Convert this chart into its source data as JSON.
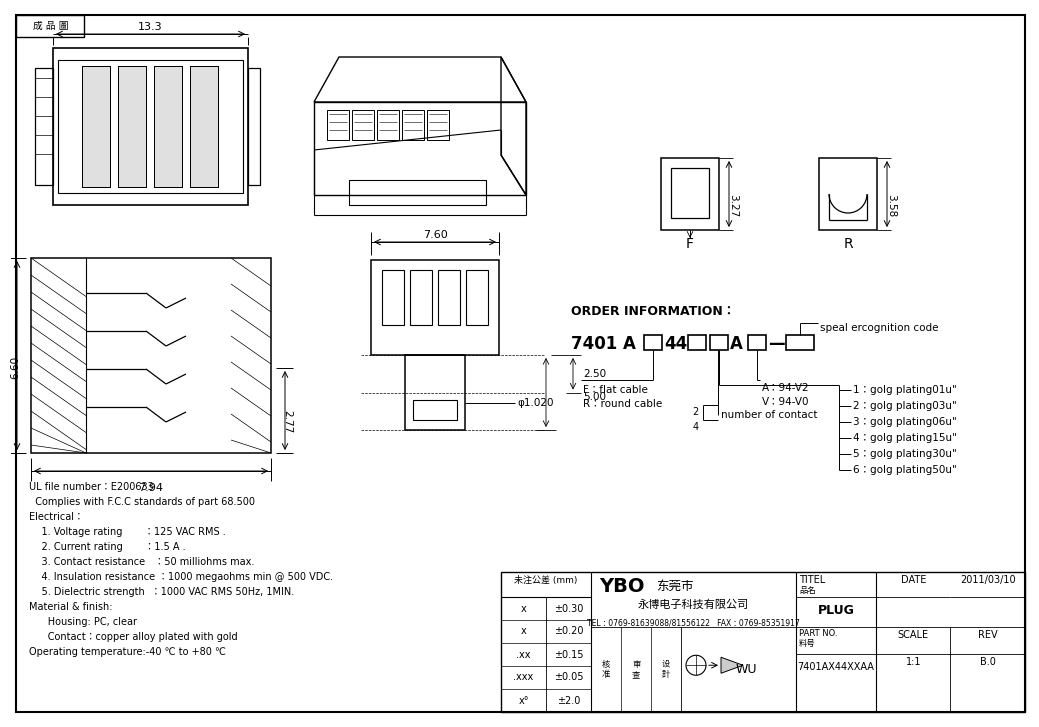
{
  "title_box": "成 品 圖",
  "bg_color": "#ffffff",
  "line_color": "#000000",
  "text_specs": [
    "UL file number：E200633",
    "  Complies with F.C.C standards of part 68.500",
    "Electrical：",
    "    1. Voltage rating       ：125 VAC RMS .",
    "    2. Current rating       ：1.5 A .",
    "    3. Contact resistance   ：50 milliohms max.",
    "    4. Insulation resistance ：1000 megaohms min @ 500 VDC.",
    "    5. Dielectric strength  ：1000 VAC RMS 50Hz, 1MIN.",
    "Material & finish:",
    "      Housing: PC, clear",
    "      Contact：copper alloy plated with gold",
    "Operating temperature:-40 ℃ to +80 ℃"
  ],
  "order_info": {
    "title": "ORDER INFORMATION：",
    "f_label": "F：flat cable",
    "r_label": "R：round cable",
    "uv_label1": "A：94-V2",
    "uv_label2": "V：94-V0",
    "speal_label": "speal ercognition code",
    "num_contact": "number of contact",
    "plating": [
      "1：golg plating01u\"",
      "2：golg plating03u\"",
      "3：golg plating06u\"",
      "4：golg plating15u\"",
      "5：golg plating30u\"",
      "6：golg plating50u\""
    ]
  },
  "dims": {
    "top_width": "13.3",
    "side_height1": "6.60",
    "side_height2": "2.77",
    "side_width": "7.94",
    "front_width": "7.60",
    "front_dim1": "φ1.020",
    "front_dim2": "2.50",
    "front_dim3": "5.00",
    "f_height": "3.27",
    "r_height": "3.58"
  },
  "table": {
    "tolerance_title": "未注公差 (mm)",
    "rows": [
      [
        "x",
        "±0.30"
      ],
      [
        "x",
        "±0.20"
      ],
      [
        ".xx",
        "±0.15"
      ],
      [
        ".xxx",
        "±0.05"
      ],
      [
        "x°",
        "±2.0"
      ]
    ],
    "ybo": "YBO",
    "city": "东莞市",
    "company_full": "永博电子科技有限公司",
    "tel": "TEL：0769-81639088/81556122   FAX：0769-85351917",
    "titel_val": "PLUG",
    "part_no_label1": "PART NO.",
    "part_no_label2": "料号",
    "part_no_val": "7401AX44XXAA",
    "date_label": "DATE",
    "date_val": "2011/03/10",
    "scale_label": "SCALE",
    "scale_val": "1:1",
    "rev_label": "REV",
    "rev_val": "B.0",
    "approver1": "核\n准",
    "approver2": "审\n查",
    "approver3": "设\n計",
    "signer": "WU"
  }
}
